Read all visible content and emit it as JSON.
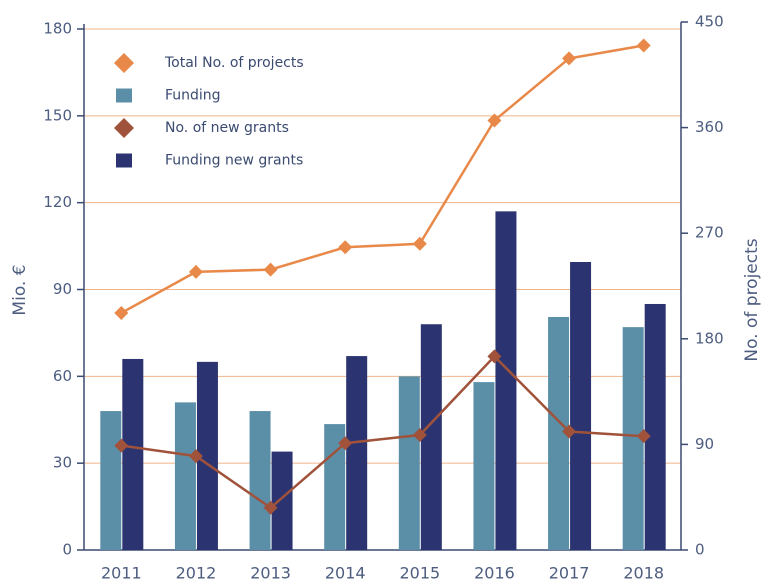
{
  "chart_data": {
    "type": "bar_line",
    "categories": [
      "2011",
      "2012",
      "2013",
      "2014",
      "2015",
      "2016",
      "2017",
      "2018"
    ],
    "ylabel": "Mio. €",
    "y2label": "No. of projects",
    "ylim": [
      0,
      180
    ],
    "yticks": [
      0,
      30,
      60,
      90,
      120,
      150,
      180
    ],
    "y2lim": [
      0,
      450
    ],
    "y2ticks": [
      0,
      90,
      180,
      270,
      360,
      450
    ],
    "grid": true,
    "legend": "upper left",
    "series": [
      {
        "name": "Total No. of projects",
        "kind": "line",
        "axis": "y2",
        "color": "#e8894a",
        "values": [
          202,
          237,
          239,
          258,
          261,
          366,
          419,
          430
        ]
      },
      {
        "name": "Funding",
        "kind": "bar",
        "color": "#5b8fa8",
        "values": [
          48,
          51,
          48,
          43.5,
          60,
          58,
          80.5,
          77
        ]
      },
      {
        "name": "No. of new grants",
        "kind": "line",
        "axis": "y2",
        "color": "#a0523a",
        "values": [
          89,
          80,
          36,
          91,
          98,
          165,
          101,
          97
        ]
      },
      {
        "name": "Funding new grants",
        "kind": "bar",
        "color": "#2b3470",
        "values": [
          66,
          65,
          34,
          67,
          78,
          117,
          99.5,
          85
        ]
      }
    ]
  }
}
